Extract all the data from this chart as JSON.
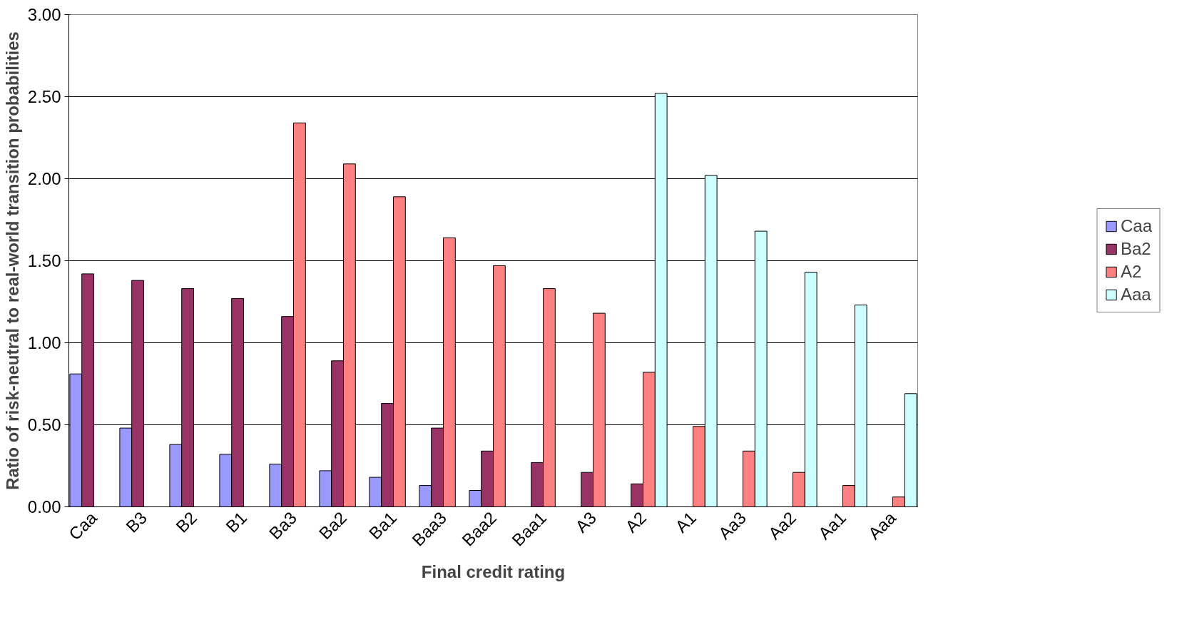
{
  "chart_data": {
    "type": "bar",
    "xlabel": "Final credit rating",
    "ylabel": "Ratio of risk-neutral to real-world transition probabilities",
    "categories": [
      "Caa",
      "B3",
      "B2",
      "B1",
      "Ba3",
      "Ba2",
      "Ba1",
      "Baa3",
      "Baa2",
      "Baa1",
      "A3",
      "A2",
      "A1",
      "Aa3",
      "Aa2",
      "Aa1",
      "Aaa"
    ],
    "series": [
      {
        "name": "Caa",
        "color": "#9999ff",
        "values": [
          0.81,
          0.48,
          0.38,
          0.32,
          0.26,
          0.22,
          0.18,
          0.13,
          0.1,
          null,
          null,
          null,
          null,
          null,
          null,
          null,
          null
        ]
      },
      {
        "name": "Ba2",
        "color": "#993366",
        "values": [
          1.42,
          1.38,
          1.33,
          1.27,
          1.16,
          0.89,
          0.63,
          0.48,
          0.34,
          0.27,
          0.21,
          0.14,
          null,
          null,
          null,
          null,
          null
        ]
      },
      {
        "name": "A2",
        "color": "#ff8080",
        "values": [
          null,
          null,
          null,
          null,
          2.34,
          2.09,
          1.89,
          1.64,
          1.47,
          1.33,
          1.18,
          0.82,
          0.49,
          0.34,
          0.21,
          0.13,
          0.06
        ]
      },
      {
        "name": "Aaa",
        "color": "#ccffff",
        "values": [
          null,
          null,
          null,
          null,
          null,
          null,
          null,
          null,
          null,
          null,
          null,
          2.52,
          2.02,
          1.68,
          1.43,
          1.23,
          0.69
        ]
      }
    ],
    "ylim": [
      0,
      3
    ],
    "yticks": [
      {
        "value": 0,
        "label": "0.00"
      },
      {
        "value": 0.5,
        "label": "0.50"
      },
      {
        "value": 1,
        "label": "1.00"
      },
      {
        "value": 1.5,
        "label": "1.50"
      },
      {
        "value": 2,
        "label": "2.00"
      },
      {
        "value": 2.5,
        "label": "2.50"
      },
      {
        "value": 3,
        "label": "3.00"
      }
    ],
    "grid": "y",
    "legend": "right"
  }
}
